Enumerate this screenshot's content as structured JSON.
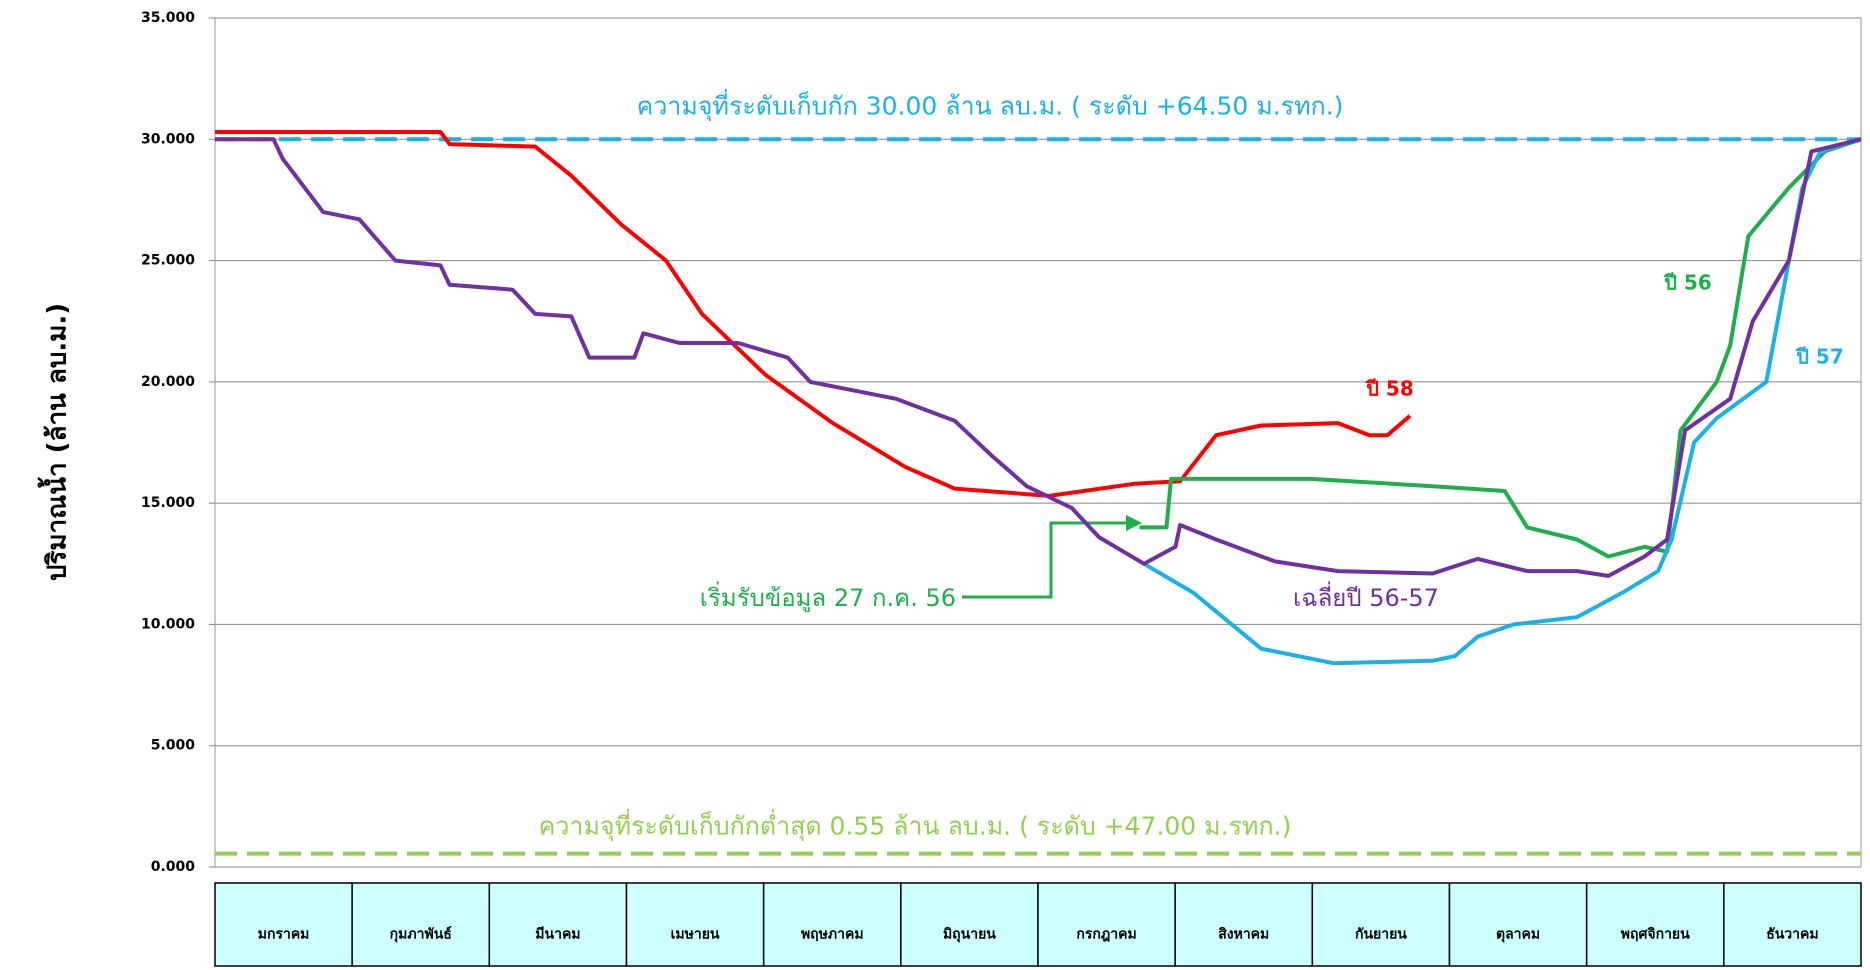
{
  "chart_data": {
    "type": "line",
    "y_label": "ปริมาณน้ำ (ล้าน ลบ.ม.)",
    "categories": [
      "มกราคม",
      "กุมภาพันธ์",
      "มีนาคม",
      "เมษายน",
      "พฤษภาคม",
      "มิถุนายน",
      "กรกฎาคม",
      "สิงหาคม",
      "กันยายน",
      "ตุลาคม",
      "พฤศจิกายน",
      "ธันวาคม"
    ],
    "xlim": [
      0,
      365
    ],
    "ylim": [
      0,
      35
    ],
    "yticks": [
      {
        "value": 0,
        "label": "0.000"
      },
      {
        "value": 5,
        "label": "5.000"
      },
      {
        "value": 10,
        "label": "10.000"
      },
      {
        "value": 15,
        "label": "15.000"
      },
      {
        "value": 20,
        "label": "20.000"
      },
      {
        "value": 25,
        "label": "25.000"
      },
      {
        "value": 30,
        "label": "30.000"
      },
      {
        "value": 35,
        "label": "35.000"
      }
    ],
    "grid": true,
    "reference_lines": [
      {
        "value": 30,
        "label": "ความจุที่ระดับเก็บกัก 30.00 ล้าน ลบ.ม. ( ระดับ +64.50 ม.รทก.)",
        "color": "#1ab0e8"
      },
      {
        "value": 0.55,
        "label": "ความจุที่ระดับเก็บกักต่ำสุด 0.55 ล้าน ลบ.ม. ( ระดับ +47.00 ม.รทก.)",
        "color": "#92d050"
      }
    ],
    "annotation": "เริ่มรับข้อมูล 27 ก.ค. 56",
    "series": [
      {
        "name": "ปี 58",
        "color": "#ff0000",
        "x": [
          0,
          50,
          52,
          71,
          79,
          90,
          100,
          108,
          122,
          137,
          153,
          164,
          185,
          204,
          214,
          222,
          232,
          249,
          256,
          260,
          265
        ],
        "values": [
          30.3,
          30.3,
          29.8,
          29.7,
          28.5,
          26.5,
          25,
          22.8,
          20.3,
          18.3,
          16.5,
          15.6,
          15.3,
          15.8,
          15.9,
          17.8,
          18.2,
          18.3,
          17.8,
          17.8,
          18.6
        ]
      },
      {
        "name": "ปี 56",
        "color": "#1fae4b",
        "x": [
          205,
          211,
          212,
          243,
          270,
          286,
          291,
          302,
          309,
          317,
          322,
          325,
          333,
          336,
          340,
          349,
          357,
          365
        ],
        "values": [
          14,
          14,
          16,
          16,
          15.7,
          15.5,
          14,
          13.5,
          12.8,
          13.2,
          13,
          18,
          20,
          21.5,
          26,
          28,
          29.5,
          30
        ]
      },
      {
        "name": "ปี 57",
        "color": "#1ab0e8",
        "x": [
          206,
          217,
          232,
          248,
          270,
          275,
          280,
          288,
          302,
          312,
          320,
          323,
          328,
          333,
          344,
          352,
          356,
          365
        ],
        "values": [
          12.5,
          11.3,
          9,
          8.4,
          8.5,
          8.7,
          9.5,
          10,
          10.3,
          11.3,
          12.2,
          13.5,
          17.5,
          18.5,
          20,
          28,
          29.5,
          30
        ]
      },
      {
        "name": "เฉลี่ยปี 56-57",
        "color": "#7030a0",
        "x": [
          0,
          13,
          15,
          24,
          32,
          40,
          50,
          52,
          66,
          71,
          79,
          83,
          93,
          95,
          103,
          116,
          127,
          132,
          151,
          164,
          172,
          180,
          190,
          196,
          206,
          213,
          214,
          222,
          235,
          249,
          270,
          280,
          291,
          302,
          309,
          317,
          322,
          326,
          336,
          341,
          349,
          354,
          365
        ],
        "values": [
          30,
          30,
          29.2,
          27,
          26.7,
          25,
          24.8,
          24,
          23.8,
          22.8,
          22.7,
          21,
          21,
          22,
          21.6,
          21.6,
          21,
          20,
          19.3,
          18.4,
          17,
          15.7,
          14.8,
          13.6,
          12.5,
          13.2,
          14.1,
          13.5,
          12.6,
          12.2,
          12.1,
          12.7,
          12.2,
          12.2,
          12,
          12.8,
          13.5,
          18,
          19.3,
          22.5,
          25,
          29.5,
          30
        ]
      }
    ]
  }
}
